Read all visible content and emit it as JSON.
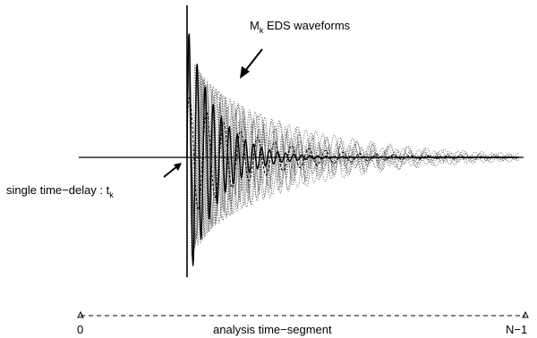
{
  "annotations": {
    "waveforms_main": "M",
    "waveforms_sub": "k",
    "waveforms_rest": " EDS waveforms",
    "delay_main": "single time−delay : t",
    "delay_sub": "k"
  },
  "time_axis": {
    "start_label": "0",
    "end_label": "N−1",
    "caption": "analysis time−segment"
  },
  "colors": {
    "ink": "#000000",
    "dotted": "#555555"
  }
}
